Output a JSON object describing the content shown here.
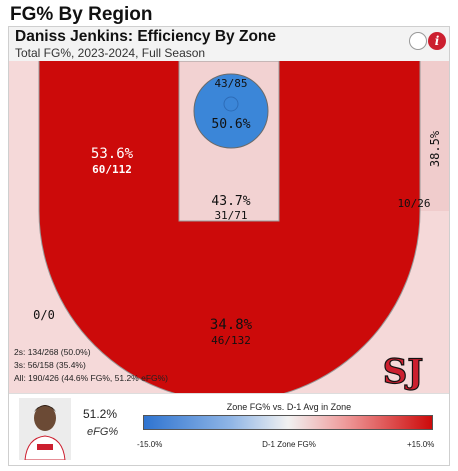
{
  "page": {
    "section_title": "FG% By Region"
  },
  "header": {
    "title": "Daniss Jenkins: Efficiency By Zone",
    "subtitle": "Total FG%, 2023-2024, Full Season",
    "info_glyph": "i"
  },
  "colors": {
    "hot_red": "#cc0a0a",
    "light_pink": "#f5d9d9",
    "medium_pink": "#f0cccc",
    "cold_blue": "#3b86d8",
    "logo_red": "#cc1f2f"
  },
  "chart_data": {
    "type": "heatmap",
    "title": "Daniss Jenkins: Efficiency By Zone",
    "zones": [
      {
        "id": "rim",
        "pct": "50.6%",
        "made": 43,
        "attempts": 85,
        "label": "43/85"
      },
      {
        "id": "paint",
        "pct": "43.7%",
        "made": 31,
        "attempts": 71,
        "label": "31/71"
      },
      {
        "id": "midrange",
        "pct": "53.6%",
        "made": 60,
        "attempts": 112,
        "label": "60/112"
      },
      {
        "id": "right-corner-three",
        "pct": "38.5%",
        "made": 10,
        "attempts": 26,
        "label": "10/26"
      },
      {
        "id": "above-break-three",
        "pct": "34.8%",
        "made": 46,
        "attempts": 132,
        "label": "46/132"
      },
      {
        "id": "left-corner-three",
        "pct": "",
        "made": 0,
        "attempts": 0,
        "label": "0/0"
      }
    ]
  },
  "summary": {
    "twos": "2s: 134/268 (50.0%)",
    "threes": "3s: 56/158 (35.4%)",
    "all": "All: 190/426 (44.6% FG%, 51.2% eFG%)"
  },
  "logo": {
    "text": "SJ"
  },
  "footer": {
    "efg_value": "51.2%",
    "efg_label": "eFG%",
    "scale_title": "Zone FG% vs. D-1 Avg in Zone",
    "scale_min": "-15.0%",
    "scale_mid": "D-1 Zone FG%",
    "scale_max": "+15.0%"
  }
}
